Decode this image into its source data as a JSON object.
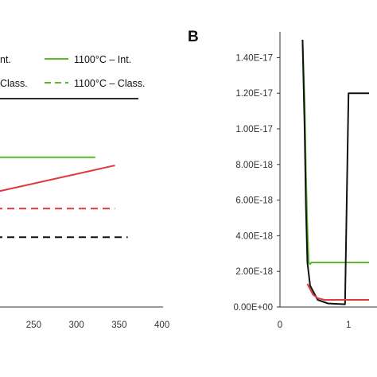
{
  "figure": {
    "panel_b_label": "B"
  },
  "legend": {
    "items": [
      {
        "label": "nt.",
        "color": "#000000",
        "dashed": false
      },
      {
        "label": "1100°C – Int.",
        "color": "#5cb82e",
        "dashed": false
      },
      {
        "label": "Class.",
        "color": "#000000",
        "dashed": true
      },
      {
        "label": "1100°C – Class.",
        "color": "#5cb82e",
        "dashed": true
      }
    ]
  },
  "colors": {
    "green": "#5cb82e",
    "red": "#e03c3c",
    "black": "#111111",
    "dark_red_dashed": "#d03a4a"
  },
  "chart_data": [
    {
      "type": "line",
      "panel": "A",
      "title": "",
      "xlabel": "",
      "ylabel": "",
      "x_ticks": [
        250,
        300,
        350,
        400
      ],
      "xlim": [
        205,
        405
      ],
      "ylim": [
        0,
        10
      ],
      "series": [
        {
          "color": "#5cb82e",
          "dashed": false,
          "x": [
            205,
            322
          ],
          "y": [
            7.3,
            7.3
          ]
        },
        {
          "color": "#e03c3c",
          "dashed": false,
          "x": [
            205,
            345
          ],
          "y": [
            5.6,
            6.9
          ]
        },
        {
          "color": "#e03c3c",
          "dashed": true,
          "x": [
            205,
            345
          ],
          "y": [
            4.8,
            4.8
          ]
        },
        {
          "color": "#111111",
          "dashed": true,
          "x": [
            205,
            360
          ],
          "y": [
            3.4,
            3.4
          ]
        }
      ]
    },
    {
      "type": "line",
      "panel": "B",
      "title": "",
      "xlabel": "",
      "ylabel": "",
      "y_ticks": [
        "0.00E+00",
        "2.00E-18",
        "4.00E-18",
        "6.00E-18",
        "8.00E-18",
        "1.00E-17",
        "1.20E-17",
        "1.40E-17"
      ],
      "x_ticks": [
        "0",
        "1"
      ],
      "ylim": [
        0,
        1.5e-17
      ],
      "xlim": [
        0,
        1.3
      ],
      "series": [
        {
          "color": "#5cb82e",
          "dashed": false,
          "x": [
            0.33,
            0.36,
            0.38,
            0.4,
            0.42,
            0.44,
            0.46,
            0.55,
            1.3
          ],
          "y": [
            1.5e-17,
            1.15e-17,
            7.5e-18,
            4.5e-18,
            2.5e-18,
            2.4e-18,
            2.5e-18,
            2.5e-18,
            2.5e-18
          ]
        },
        {
          "color": "#111111",
          "dashed": false,
          "x": [
            0.33,
            0.36,
            0.38,
            0.4,
            0.44,
            0.55,
            0.7,
            0.95,
            1.0,
            1.3
          ],
          "y": [
            1.5e-17,
            1e-17,
            5.5e-18,
            2.5e-18,
            1.2e-18,
            4e-19,
            2e-19,
            1.5e-19,
            1.2e-17,
            1.2e-17
          ]
        },
        {
          "color": "#e03c3c",
          "dashed": false,
          "x": [
            0.4,
            0.44,
            0.48,
            0.55,
            0.65,
            0.8,
            1.0,
            1.3
          ],
          "y": [
            1.3e-18,
            1e-18,
            7e-19,
            5e-19,
            4e-19,
            4e-19,
            4e-19,
            4e-19
          ]
        }
      ]
    }
  ]
}
